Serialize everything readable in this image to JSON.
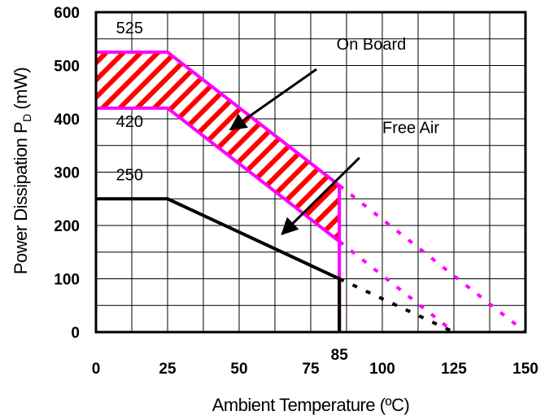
{
  "chart_data": {
    "type": "line",
    "xlabel": "Ambient Temperature (ºC)",
    "ylabel": "Power Dissipation P",
    "ylabel_sub": "D",
    "ylabel_unit": " (mW)",
    "xlim": [
      0,
      150
    ],
    "ylim": [
      0,
      600
    ],
    "grid": true,
    "x_ticks": [
      0,
      25,
      50,
      75,
      100,
      125,
      150
    ],
    "x_ticks_extra": [
      85
    ],
    "y_ticks": [
      0,
      100,
      200,
      300,
      400,
      500,
      600
    ],
    "series": [
      {
        "color": "#ff00ff",
        "points": [
          [
            0,
            525
          ],
          [
            25,
            525
          ],
          [
            85,
            275
          ],
          [
            85,
            0
          ]
        ],
        "derating_dashed": [
          [
            85,
            275
          ],
          [
            150,
            0
          ]
        ]
      },
      {
        "color": "#ff00ff",
        "points": [
          [
            0,
            420
          ],
          [
            25,
            420
          ],
          [
            85,
            170
          ]
        ],
        "derating_dashed": [
          [
            85,
            170
          ],
          [
            125,
            0
          ]
        ]
      },
      {
        "color": "#000000",
        "points": [
          [
            0,
            250
          ],
          [
            25,
            250
          ],
          [
            85,
            100
          ],
          [
            85,
            0
          ]
        ],
        "derating_dashed": [
          [
            85,
            100
          ],
          [
            125,
            0
          ]
        ]
      }
    ],
    "shaded_region": {
      "fill_color": "#ff0000",
      "border_color": "#ff00ff",
      "polygon": [
        [
          0,
          525
        ],
        [
          25,
          525
        ],
        [
          85,
          275
        ],
        [
          85,
          170
        ],
        [
          25,
          420
        ],
        [
          0,
          420
        ]
      ]
    },
    "value_labels": [
      {
        "text": "525",
        "x": 7,
        "y": 560
      },
      {
        "text": "420",
        "x": 7,
        "y": 385
      },
      {
        "text": "250",
        "x": 7,
        "y": 285
      }
    ],
    "annotations": [
      {
        "text": "On Board",
        "text_x": 84,
        "text_y": 530,
        "arrow_from": [
          77,
          493
        ],
        "arrow_to": [
          47,
          380
        ]
      },
      {
        "text": "Free Air",
        "text_x": 100,
        "text_y": 373,
        "arrow_from": [
          92,
          327
        ],
        "arrow_to": [
          65,
          184
        ]
      }
    ]
  }
}
